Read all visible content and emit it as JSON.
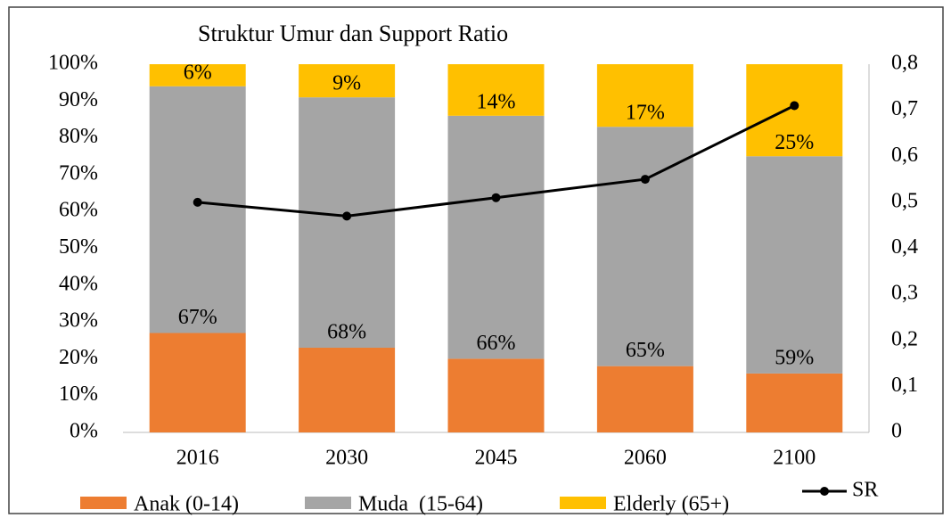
{
  "chart_data": {
    "type": "bar",
    "stacked": true,
    "title": "Struktur Umur dan Support Ratio",
    "categories": [
      "2016",
      "2030",
      "2045",
      "2060",
      "2100"
    ],
    "series": [
      {
        "name": "Anak (0-14)",
        "color": "#ed7d31",
        "values": [
          27,
          23,
          20,
          18,
          16
        ]
      },
      {
        "name": "Muda  (15-64)",
        "color": "#a5a5a5",
        "values": [
          67,
          68,
          66,
          65,
          59
        ],
        "value_labels": [
          "67%",
          "68%",
          "66%",
          "65%",
          "59%"
        ]
      },
      {
        "name": "Elderly (65+)",
        "color": "#ffc000",
        "values": [
          6,
          9,
          14,
          17,
          25
        ],
        "value_labels": [
          "6%",
          "9%",
          "14%",
          "17%",
          "25%"
        ]
      },
      {
        "name": "SR",
        "type": "line",
        "axis": "y2",
        "color": "#000000",
        "values": [
          0.5,
          0.47,
          0.51,
          0.55,
          0.71
        ]
      }
    ],
    "ylim": [
      0,
      100
    ],
    "yticks": [
      {
        "value": 0,
        "label": "0%"
      },
      {
        "value": 10,
        "label": "10%"
      },
      {
        "value": 20,
        "label": "20%"
      },
      {
        "value": 30,
        "label": "30%"
      },
      {
        "value": 40,
        "label": "40%"
      },
      {
        "value": 50,
        "label": "50%"
      },
      {
        "value": 60,
        "label": "60%"
      },
      {
        "value": 70,
        "label": "70%"
      },
      {
        "value": 80,
        "label": "80%"
      },
      {
        "value": 90,
        "label": "90%"
      },
      {
        "value": 100,
        "label": "100%"
      }
    ],
    "y2lim": [
      0,
      0.8
    ],
    "y2ticks": [
      0,
      {
        "value": 0.1,
        "label": "0,1"
      },
      {
        "value": 0.2,
        "label": "0,2"
      },
      {
        "value": 0.3,
        "label": "0,3"
      },
      {
        "value": 0.4,
        "label": "0,4"
      },
      {
        "value": 0.5,
        "label": "0,5"
      },
      {
        "value": 0.6,
        "label": "0,6"
      },
      {
        "value": 0.7,
        "label": "0,7"
      },
      {
        "value": 0.8,
        "label": "0,8"
      }
    ],
    "grid": false,
    "legend": "bottom"
  }
}
